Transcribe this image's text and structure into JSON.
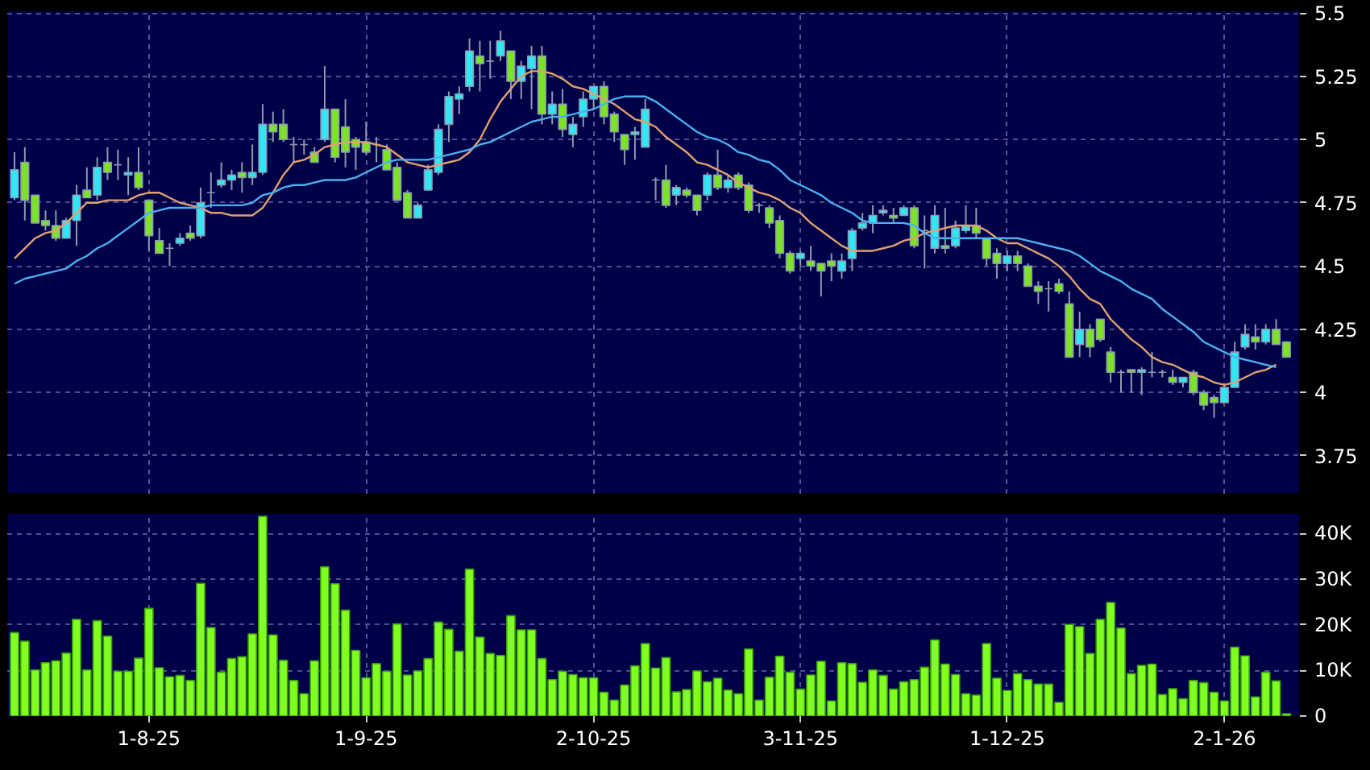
{
  "chart_data": [
    {
      "type": "candlestick",
      "tick_labels": "y",
      "grid": true,
      "categories": [
        null,
        null,
        null,
        null,
        null,
        null,
        null,
        null,
        null,
        null,
        null,
        null,
        null,
        "1-8-25",
        null,
        null,
        null,
        null,
        null,
        null,
        null,
        null,
        null,
        null,
        null,
        null,
        null,
        null,
        null,
        null,
        null,
        null,
        null,
        null,
        "1-9-25",
        null,
        null,
        null,
        null,
        null,
        null,
        null,
        null,
        null,
        null,
        null,
        null,
        null,
        null,
        null,
        null,
        null,
        null,
        null,
        null,
        null,
        "2-10-25",
        null,
        null,
        null,
        null,
        null,
        null,
        null,
        null,
        null,
        null,
        null,
        null,
        null,
        null,
        null,
        null,
        null,
        null,
        null,
        "3-11-25",
        null,
        null,
        null,
        null,
        null,
        null,
        null,
        null,
        null,
        null,
        null,
        null,
        null,
        null,
        null,
        null,
        null,
        null,
        null,
        "1-12-25",
        null,
        null,
        null,
        null,
        null,
        null,
        null,
        null,
        null,
        null,
        null,
        null,
        null,
        null,
        null,
        null,
        null,
        null,
        null,
        null,
        "2-1-26",
        null,
        null,
        null,
        null,
        null,
        null
      ],
      "ohlc": [
        [
          4.77,
          4.95,
          4.76,
          4.88
        ],
        [
          4.91,
          4.97,
          4.68,
          4.76
        ],
        [
          4.78,
          4.78,
          4.67,
          4.67
        ],
        [
          4.68,
          4.72,
          4.64,
          4.66
        ],
        [
          4.66,
          4.72,
          4.6,
          4.61
        ],
        [
          4.61,
          4.69,
          4.61,
          4.68
        ],
        [
          4.68,
          4.82,
          4.58,
          4.78
        ],
        [
          4.8,
          4.89,
          4.77,
          4.77
        ],
        [
          4.78,
          4.93,
          4.76,
          4.89
        ],
        [
          4.91,
          4.97,
          4.84,
          4.87
        ],
        [
          4.9,
          4.96,
          4.84,
          4.9
        ],
        [
          4.86,
          4.93,
          4.78,
          4.87
        ],
        [
          4.87,
          4.97,
          4.8,
          4.81
        ],
        [
          4.76,
          4.76,
          4.56,
          4.62
        ],
        [
          4.6,
          4.65,
          4.55,
          4.55
        ],
        [
          4.57,
          4.59,
          4.5,
          4.57
        ],
        [
          4.59,
          4.63,
          4.58,
          4.61
        ],
        [
          4.63,
          4.66,
          4.6,
          4.61
        ],
        [
          4.62,
          4.81,
          4.61,
          4.75
        ],
        [
          4.79,
          4.87,
          4.73,
          4.79
        ],
        [
          4.82,
          4.91,
          4.81,
          4.84
        ],
        [
          4.84,
          4.88,
          4.8,
          4.86
        ],
        [
          4.87,
          4.91,
          4.79,
          4.85
        ],
        [
          4.85,
          4.98,
          4.82,
          4.87
        ],
        [
          4.87,
          5.14,
          4.86,
          5.06
        ],
        [
          5.06,
          5.11,
          4.99,
          5.03
        ],
        [
          5.06,
          5.12,
          4.99,
          5.0
        ],
        [
          4.98,
          5.01,
          4.91,
          4.98
        ],
        [
          4.98,
          5.0,
          4.94,
          4.98
        ],
        [
          4.95,
          4.97,
          4.91,
          4.91
        ],
        [
          5.0,
          5.29,
          4.99,
          5.12
        ],
        [
          5.12,
          5.12,
          4.91,
          4.93
        ],
        [
          5.05,
          5.16,
          4.89,
          4.95
        ],
        [
          5.0,
          5.01,
          4.88,
          4.97
        ],
        [
          4.99,
          5.07,
          4.94,
          4.95
        ],
        [
          4.98,
          5.01,
          4.91,
          4.98
        ],
        [
          4.96,
          4.98,
          4.88,
          4.88
        ],
        [
          4.89,
          4.91,
          4.76,
          4.76
        ],
        [
          4.79,
          4.8,
          4.69,
          4.69
        ],
        [
          4.69,
          4.75,
          4.69,
          4.74
        ],
        [
          4.8,
          4.9,
          4.8,
          4.88
        ],
        [
          4.87,
          5.06,
          4.86,
          5.04
        ],
        [
          5.06,
          5.19,
          4.99,
          5.17
        ],
        [
          5.16,
          5.21,
          5.1,
          5.18
        ],
        [
          5.21,
          5.4,
          5.19,
          5.35
        ],
        [
          5.33,
          5.39,
          5.19,
          5.3
        ],
        [
          5.31,
          5.39,
          5.24,
          5.31
        ],
        [
          5.33,
          5.43,
          5.31,
          5.39
        ],
        [
          5.35,
          5.35,
          5.16,
          5.23
        ],
        [
          5.23,
          5.31,
          5.16,
          5.29
        ],
        [
          5.28,
          5.37,
          5.12,
          5.33
        ],
        [
          5.33,
          5.37,
          5.06,
          5.1
        ],
        [
          5.1,
          5.19,
          5.06,
          5.14
        ],
        [
          5.14,
          5.2,
          5.01,
          5.04
        ],
        [
          5.02,
          5.09,
          4.97,
          5.06
        ],
        [
          5.09,
          5.19,
          5.05,
          5.16
        ],
        [
          5.16,
          5.21,
          5.12,
          5.21
        ],
        [
          5.21,
          5.23,
          5.06,
          5.09
        ],
        [
          5.1,
          5.11,
          4.99,
          5.03
        ],
        [
          5.02,
          5.02,
          4.9,
          4.96
        ],
        [
          5.02,
          5.05,
          4.92,
          5.03
        ],
        [
          4.97,
          5.16,
          4.97,
          5.12
        ],
        [
          4.84,
          4.85,
          4.76,
          4.84
        ],
        [
          4.84,
          4.9,
          4.73,
          4.74
        ],
        [
          4.78,
          4.82,
          4.74,
          4.81
        ],
        [
          4.8,
          4.81,
          4.77,
          4.78
        ],
        [
          4.78,
          4.78,
          4.7,
          4.72
        ],
        [
          4.78,
          4.87,
          4.76,
          4.86
        ],
        [
          4.86,
          4.96,
          4.8,
          4.81
        ],
        [
          4.81,
          4.86,
          4.79,
          4.84
        ],
        [
          4.86,
          4.87,
          4.8,
          4.81
        ],
        [
          4.82,
          4.83,
          4.71,
          4.72
        ],
        [
          4.74,
          4.75,
          4.71,
          4.74
        ],
        [
          4.73,
          4.74,
          4.65,
          4.67
        ],
        [
          4.68,
          4.7,
          4.53,
          4.55
        ],
        [
          4.55,
          4.56,
          4.47,
          4.48
        ],
        [
          4.53,
          4.56,
          4.5,
          4.55
        ],
        [
          4.52,
          4.58,
          4.48,
          4.5
        ],
        [
          4.51,
          4.51,
          4.38,
          4.48
        ],
        [
          4.52,
          4.55,
          4.44,
          4.5
        ],
        [
          4.48,
          4.55,
          4.45,
          4.52
        ],
        [
          4.53,
          4.65,
          4.48,
          4.64
        ],
        [
          4.65,
          4.71,
          4.64,
          4.67
        ],
        [
          4.67,
          4.74,
          4.63,
          4.7
        ],
        [
          4.71,
          4.74,
          4.7,
          4.72
        ],
        [
          4.7,
          4.73,
          4.67,
          4.69
        ],
        [
          4.7,
          4.74,
          4.7,
          4.73
        ],
        [
          4.73,
          4.74,
          4.57,
          4.58
        ],
        [
          4.64,
          4.7,
          4.49,
          4.64
        ],
        [
          4.57,
          4.74,
          4.55,
          4.7
        ],
        [
          4.58,
          4.73,
          4.55,
          4.57
        ],
        [
          4.58,
          4.68,
          4.57,
          4.65
        ],
        [
          4.64,
          4.74,
          4.63,
          4.66
        ],
        [
          4.66,
          4.73,
          4.61,
          4.63
        ],
        [
          4.61,
          4.61,
          4.5,
          4.53
        ],
        [
          4.55,
          4.57,
          4.45,
          4.51
        ],
        [
          4.51,
          4.56,
          4.48,
          4.54
        ],
        [
          4.54,
          4.56,
          4.48,
          4.51
        ],
        [
          4.5,
          4.51,
          4.42,
          4.42
        ],
        [
          4.42,
          4.44,
          4.35,
          4.4
        ],
        [
          4.41,
          4.44,
          4.32,
          4.41
        ],
        [
          4.43,
          4.45,
          4.39,
          4.4
        ],
        [
          4.35,
          4.4,
          4.14,
          4.14
        ],
        [
          4.19,
          4.32,
          4.14,
          4.25
        ],
        [
          4.25,
          4.27,
          4.14,
          4.18
        ],
        [
          4.29,
          4.29,
          4.2,
          4.21
        ],
        [
          4.16,
          4.18,
          4.04,
          4.08
        ],
        [
          4.08,
          4.09,
          4.0,
          4.08
        ],
        [
          4.09,
          4.09,
          4.0,
          4.08
        ],
        [
          4.08,
          4.1,
          3.99,
          4.09
        ],
        [
          4.08,
          4.16,
          4.06,
          4.08
        ],
        [
          4.08,
          4.09,
          4.06,
          4.08
        ],
        [
          4.06,
          4.09,
          4.03,
          4.04
        ],
        [
          4.04,
          4.06,
          4.02,
          4.06
        ],
        [
          4.08,
          4.09,
          3.99,
          4.0
        ],
        [
          4.0,
          4.01,
          3.93,
          3.95
        ],
        [
          3.98,
          3.99,
          3.9,
          3.96
        ],
        [
          3.96,
          4.03,
          3.96,
          4.02
        ],
        [
          4.02,
          4.2,
          4.02,
          4.16
        ],
        [
          4.18,
          4.27,
          4.17,
          4.23
        ],
        [
          4.22,
          4.27,
          4.17,
          4.2
        ],
        [
          4.2,
          4.27,
          4.19,
          4.25
        ],
        [
          4.25,
          4.29,
          4.19,
          4.19
        ],
        [
          4.2,
          4.2,
          4.14,
          4.14
        ]
      ],
      "colors": [
        "#33e6f5",
        "#7fe22a",
        "#7fe22a",
        "#7fe22a",
        "#7fe22a",
        "#33e6f5",
        "#33e6f5",
        "#7fe22a",
        "#33e6f5",
        "#7fe22a",
        "#8a9ab0",
        "#33e6f5",
        "#7fe22a",
        "#7fe22a",
        "#7fe22a",
        "#8a9ab0",
        "#33e6f5",
        "#7fe22a",
        "#33e6f5",
        "#8a9ab0",
        "#33e6f5",
        "#33e6f5",
        "#7fe22a",
        "#33e6f5",
        "#33e6f5",
        "#7fe22a",
        "#7fe22a",
        "#8a9ab0",
        "#8a9ab0",
        "#7fe22a",
        "#33e6f5",
        "#7fe22a",
        "#7fe22a",
        "#7fe22a",
        "#7fe22a",
        "#8a9ab0",
        "#7fe22a",
        "#7fe22a",
        "#7fe22a",
        "#33e6f5",
        "#33e6f5",
        "#33e6f5",
        "#33e6f5",
        "#33e6f5",
        "#33e6f5",
        "#7fe22a",
        "#8a9ab0",
        "#33e6f5",
        "#7fe22a",
        "#33e6f5",
        "#33e6f5",
        "#7fe22a",
        "#33e6f5",
        "#7fe22a",
        "#33e6f5",
        "#33e6f5",
        "#33e6f5",
        "#7fe22a",
        "#7fe22a",
        "#7fe22a",
        "#33e6f5",
        "#33e6f5",
        "#8a9ab0",
        "#7fe22a",
        "#33e6f5",
        "#7fe22a",
        "#7fe22a",
        "#33e6f5",
        "#7fe22a",
        "#33e6f5",
        "#7fe22a",
        "#7fe22a",
        "#8a9ab0",
        "#7fe22a",
        "#7fe22a",
        "#7fe22a",
        "#33e6f5",
        "#7fe22a",
        "#7fe22a",
        "#7fe22a",
        "#33e6f5",
        "#33e6f5",
        "#33e6f5",
        "#33e6f5",
        "#33e6f5",
        "#7fe22a",
        "#33e6f5",
        "#7fe22a",
        "#8a9ab0",
        "#33e6f5",
        "#7fe22a",
        "#33e6f5",
        "#33e6f5",
        "#7fe22a",
        "#7fe22a",
        "#7fe22a",
        "#33e6f5",
        "#7fe22a",
        "#7fe22a",
        "#7fe22a",
        "#8a9ab0",
        "#7fe22a",
        "#7fe22a",
        "#33e6f5",
        "#7fe22a",
        "#7fe22a",
        "#7fe22a",
        "#8a9ab0",
        "#7fe22a",
        "#33e6f5",
        "#8a9ab0",
        "#8a9ab0",
        "#7fe22a",
        "#33e6f5",
        "#7fe22a",
        "#7fe22a",
        "#7fe22a",
        "#33e6f5",
        "#33e6f5",
        "#33e6f5",
        "#7fe22a",
        "#33e6f5",
        "#7fe22a",
        "#7fe22a"
      ],
      "series": [
        {
          "type": "line",
          "color": "#e0a070",
          "values": [
            4.53,
            4.57,
            4.61,
            4.63,
            4.64,
            4.67,
            4.71,
            4.75,
            4.75,
            4.76,
            4.76,
            4.76,
            4.78,
            4.79,
            4.79,
            4.77,
            4.75,
            4.74,
            4.73,
            4.71,
            4.71,
            4.7,
            4.7,
            4.7,
            4.73,
            4.79,
            4.86,
            4.91,
            4.92,
            4.94,
            4.97,
            4.98,
            4.99,
            4.99,
            4.99,
            4.98,
            4.97,
            4.94,
            4.91,
            4.9,
            4.89,
            4.9,
            4.91,
            4.92,
            4.95,
            5.0,
            5.08,
            5.15,
            5.2,
            5.25,
            5.27,
            5.27,
            5.26,
            5.24,
            5.21,
            5.2,
            5.18,
            5.16,
            5.14,
            5.11,
            5.08,
            5.07,
            5.05,
            5.01,
            4.98,
            4.95,
            4.91,
            4.9,
            4.88,
            4.86,
            4.83,
            4.81,
            4.79,
            4.78,
            4.76,
            4.73,
            4.71,
            4.67,
            4.64,
            4.61,
            4.58,
            4.56,
            4.56,
            4.56,
            4.57,
            4.58,
            4.6,
            4.61,
            4.63,
            4.64,
            4.65,
            4.66,
            4.66,
            4.66,
            4.64,
            4.61,
            4.59,
            4.59,
            4.57,
            4.55,
            4.53,
            4.5,
            4.46,
            4.41,
            4.37,
            4.35,
            4.29,
            4.25,
            4.21,
            4.18,
            4.14,
            4.12,
            4.11,
            4.09,
            4.07,
            4.06,
            4.04,
            4.03,
            4.04,
            4.06,
            4.08,
            4.09,
            4.11,
            null
          ]
        },
        {
          "type": "line",
          "color": "#4ab0f0",
          "values": [
            4.43,
            4.45,
            4.46,
            4.47,
            4.48,
            4.49,
            4.52,
            4.54,
            4.57,
            4.59,
            4.62,
            4.65,
            4.68,
            4.71,
            4.72,
            4.73,
            4.73,
            4.73,
            4.73,
            4.74,
            4.74,
            4.74,
            4.74,
            4.75,
            4.78,
            4.79,
            4.81,
            4.82,
            4.82,
            4.83,
            4.84,
            4.84,
            4.84,
            4.85,
            4.87,
            4.89,
            4.91,
            4.92,
            4.92,
            4.92,
            4.92,
            4.93,
            4.94,
            4.95,
            4.96,
            4.98,
            4.99,
            5.01,
            5.03,
            5.05,
            5.07,
            5.08,
            5.09,
            5.09,
            5.1,
            5.11,
            5.12,
            5.14,
            5.16,
            5.17,
            5.17,
            5.17,
            5.15,
            5.12,
            5.09,
            5.06,
            5.03,
            5.01,
            5.0,
            4.98,
            4.95,
            4.94,
            4.92,
            4.91,
            4.88,
            4.84,
            4.82,
            4.8,
            4.78,
            4.75,
            4.73,
            4.71,
            4.68,
            4.67,
            4.67,
            4.67,
            4.67,
            4.66,
            4.63,
            4.61,
            4.61,
            4.61,
            4.61,
            4.61,
            4.61,
            4.61,
            4.61,
            4.61,
            4.6,
            4.59,
            4.58,
            4.57,
            4.56,
            4.54,
            4.51,
            4.48,
            4.46,
            4.44,
            4.41,
            4.39,
            4.37,
            4.33,
            4.3,
            4.27,
            4.24,
            4.2,
            4.18,
            4.16,
            4.14,
            4.13,
            4.12,
            4.11,
            4.1,
            null
          ]
        }
      ],
      "ylim": [
        3.6,
        5.51
      ],
      "yticks": [
        3.75,
        4,
        4.25,
        4.5,
        4.75,
        5,
        5.25,
        5.5
      ]
    },
    {
      "type": "bar",
      "grid": true,
      "color": "#80ff20",
      "categories": [
        null,
        null,
        null,
        null,
        null,
        null,
        null,
        null,
        null,
        null,
        null,
        null,
        null,
        "1-8-25",
        null,
        null,
        null,
        null,
        null,
        null,
        null,
        null,
        null,
        null,
        null,
        null,
        null,
        null,
        null,
        null,
        null,
        null,
        null,
        null,
        "1-9-25",
        null,
        null,
        null,
        null,
        null,
        null,
        null,
        null,
        null,
        null,
        null,
        null,
        null,
        null,
        null,
        null,
        null,
        null,
        null,
        null,
        null,
        "2-10-25",
        null,
        null,
        null,
        null,
        null,
        null,
        null,
        null,
        null,
        null,
        null,
        null,
        null,
        null,
        null,
        null,
        null,
        null,
        null,
        "3-11-25",
        null,
        null,
        null,
        null,
        null,
        null,
        null,
        null,
        null,
        null,
        null,
        null,
        null,
        null,
        null,
        null,
        null,
        null,
        null,
        "1-12-25",
        null,
        null,
        null,
        null,
        null,
        null,
        null,
        null,
        null,
        null,
        null,
        null,
        null,
        null,
        null,
        null,
        null,
        null,
        null,
        null,
        "2-1-26",
        null,
        null,
        null,
        null,
        null,
        null
      ],
      "values": [
        18.3,
        16.4,
        10.1,
        11.7,
        12.1,
        13.8,
        21.2,
        10.1,
        20.9,
        17.5,
        9.8,
        9.8,
        12.7,
        23.6,
        10.6,
        8.6,
        8.9,
        7.8,
        29.1,
        19.4,
        9.6,
        12.6,
        13.0,
        18.0,
        43.8,
        17.8,
        12.2,
        7.8,
        4.9,
        12.1,
        32.7,
        29.0,
        23.2,
        14.4,
        8.4,
        11.5,
        9.8,
        20.2,
        9.0,
        9.9,
        12.6,
        20.6,
        19.0,
        14.2,
        32.2,
        17.3,
        13.7,
        13.3,
        22.0,
        18.9,
        18.9,
        12.6,
        8.0,
        9.8,
        9.1,
        8.4,
        8.4,
        5.2,
        3.5,
        6.8,
        11.0,
        15.9,
        10.5,
        12.8,
        5.3,
        5.8,
        9.9,
        7.5,
        8.3,
        5.7,
        4.9,
        14.7,
        3.5,
        8.5,
        13.1,
        9.6,
        5.9,
        9.0,
        12.0,
        3.3,
        11.7,
        11.5,
        7.4,
        10.1,
        8.9,
        5.9,
        7.5,
        8.0,
        10.7,
        16.7,
        11.4,
        9.1,
        4.9,
        4.6,
        15.9,
        8.3,
        5.6,
        9.3,
        8.0,
        7.0,
        7.0,
        3.0,
        20.1,
        19.6,
        13.7,
        21.2,
        24.9,
        19.3,
        9.3,
        11.1,
        11.4,
        4.7,
        6.0,
        3.8,
        7.8,
        7.3,
        5.2,
        3.3,
        15.1,
        13.2,
        4.2,
        9.6,
        7.7,
        0.5
      ],
      "ylim": [
        0,
        44.5
      ],
      "yticks": [
        0,
        {
          "value": 10,
          "label": "10K"
        },
        {
          "value": 20,
          "label": "20K"
        },
        {
          "value": 30,
          "label": "30K"
        },
        {
          "value": 40,
          "label": "40K"
        }
      ]
    }
  ]
}
